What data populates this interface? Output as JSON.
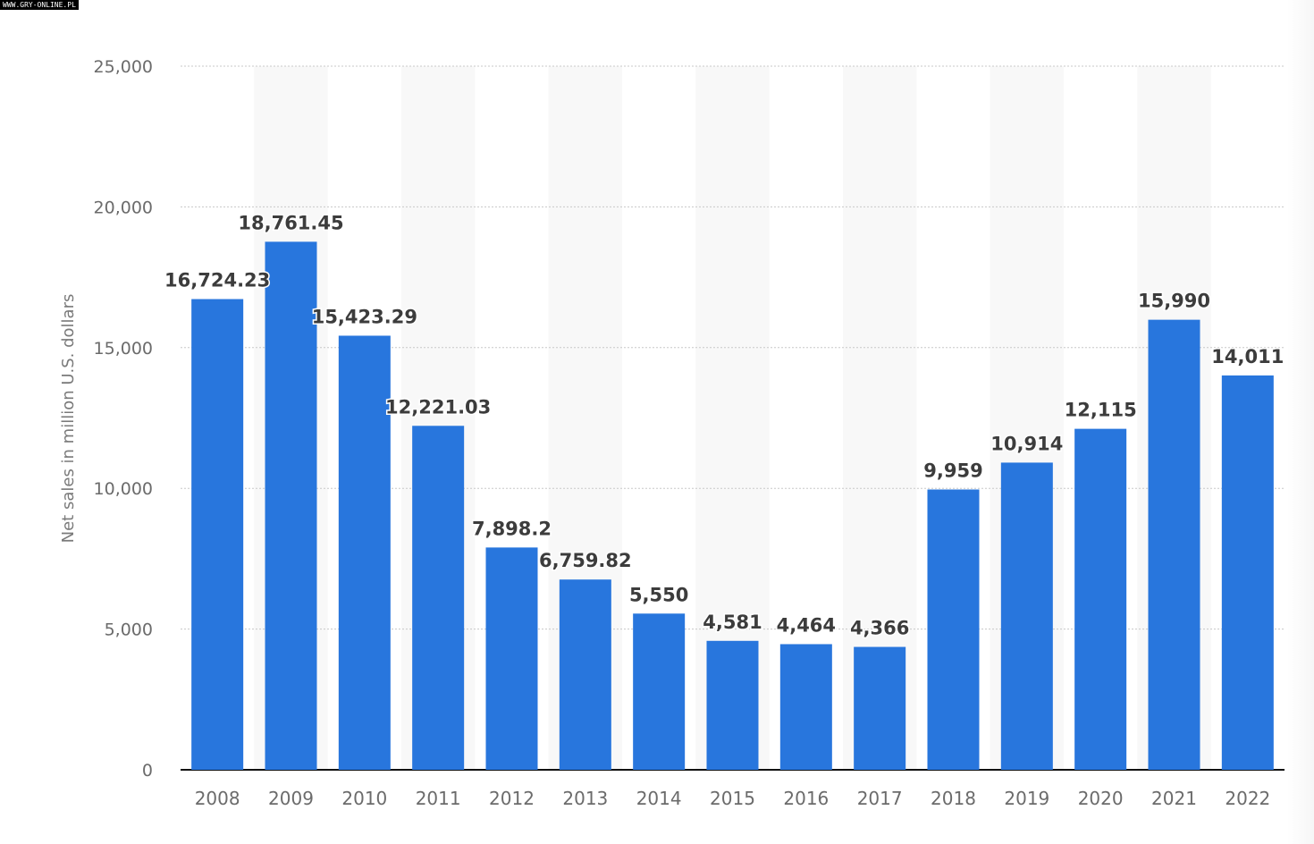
{
  "watermark": "WWW.GRY-ONLINE.PL",
  "chart_data": {
    "type": "bar",
    "title": "",
    "xlabel": "",
    "ylabel": "Net sales in million U.S. dollars",
    "ylim": [
      0,
      25000
    ],
    "yticks": [
      0,
      5000,
      10000,
      15000,
      20000,
      25000
    ],
    "ytick_labels": [
      "0",
      "5,000",
      "10,000",
      "15,000",
      "20,000",
      "25,000"
    ],
    "grid": true,
    "categories": [
      "2008",
      "2009",
      "2010",
      "2011",
      "2012",
      "2013",
      "2014",
      "2015",
      "2016",
      "2017",
      "2018",
      "2019",
      "2020",
      "2021",
      "2022"
    ],
    "values": [
      16724.23,
      18761.45,
      15423.29,
      12221.03,
      7898.2,
      6759.82,
      5550,
      4581,
      4464,
      4366,
      9959,
      10914,
      12115,
      15990,
      14011
    ],
    "value_labels": [
      "16,724.23",
      "18,761.45",
      "15,423.29",
      "12,221.03",
      "7,898.2",
      "6,759.82",
      "5,550",
      "4,581",
      "4,464",
      "4,366",
      "9,959",
      "10,914",
      "12,115",
      "15,990",
      "14,011"
    ],
    "bar_color": "#2876dd"
  }
}
